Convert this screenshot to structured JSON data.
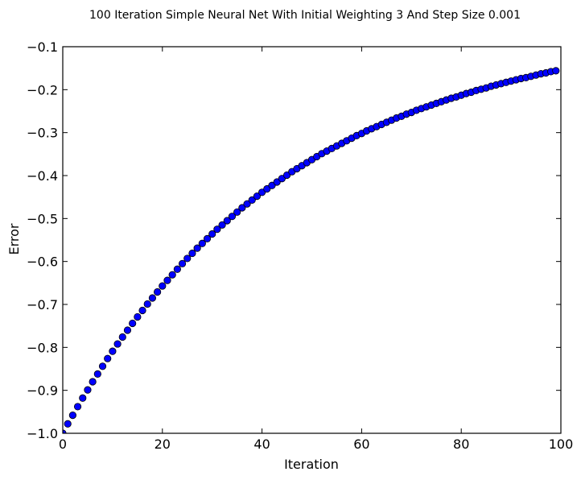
{
  "chart_data": {
    "type": "scatter",
    "title": "100 Iteration Simple Neural Net With Initial Weighting 3 And Step Size 0.001",
    "xlabel": "Iteration",
    "ylabel": "Error",
    "xlim": [
      0,
      100
    ],
    "ylim": [
      -1.0,
      -0.1
    ],
    "grid": false,
    "x_ticks": [
      0,
      20,
      40,
      60,
      80,
      100
    ],
    "x_tick_labels": [
      "0",
      "20",
      "40",
      "60",
      "80",
      "100"
    ],
    "y_ticks": [
      -1.0,
      -0.9,
      -0.8,
      -0.7,
      -0.6,
      -0.5,
      -0.4,
      -0.3,
      -0.2,
      -0.1
    ],
    "y_tick_labels": [
      "−1.0",
      "−0.9",
      "−0.8",
      "−0.7",
      "−0.6",
      "−0.5",
      "−0.4",
      "−0.3",
      "−0.2",
      "−0.1"
    ],
    "colors": {
      "marker_fill": "#0000ff",
      "marker_edge": "#000000",
      "axes": "#000000",
      "text": "#000000"
    },
    "series": [
      {
        "x": [
          0,
          1,
          2,
          3,
          4,
          5,
          6,
          7,
          8,
          9,
          10,
          11,
          12,
          13,
          14,
          15,
          16,
          17,
          18,
          19,
          20,
          21,
          22,
          23,
          24,
          25,
          26,
          27,
          28,
          29,
          30,
          31,
          32,
          33,
          34,
          35,
          36,
          37,
          38,
          39,
          40,
          41,
          42,
          43,
          44,
          45,
          46,
          47,
          48,
          49,
          50,
          51,
          52,
          53,
          54,
          55,
          56,
          57,
          58,
          59,
          60,
          61,
          62,
          63,
          64,
          65,
          66,
          67,
          68,
          69,
          70,
          71,
          72,
          73,
          74,
          75,
          76,
          77,
          78,
          79,
          80,
          81,
          82,
          83,
          84,
          85,
          86,
          87,
          88,
          89,
          90,
          91,
          92,
          93,
          94,
          95,
          96,
          97,
          98,
          99
        ],
        "values": [
          -1.0,
          -0.978,
          -0.958,
          -0.938,
          -0.918,
          -0.899,
          -0.88,
          -0.862,
          -0.844,
          -0.826,
          -0.809,
          -0.792,
          -0.776,
          -0.76,
          -0.744,
          -0.729,
          -0.714,
          -0.699,
          -0.685,
          -0.671,
          -0.657,
          -0.644,
          -0.631,
          -0.618,
          -0.605,
          -0.593,
          -0.581,
          -0.569,
          -0.558,
          -0.547,
          -0.536,
          -0.525,
          -0.515,
          -0.505,
          -0.495,
          -0.485,
          -0.475,
          -0.466,
          -0.457,
          -0.448,
          -0.439,
          -0.431,
          -0.423,
          -0.415,
          -0.407,
          -0.399,
          -0.391,
          -0.384,
          -0.377,
          -0.37,
          -0.363,
          -0.356,
          -0.349,
          -0.343,
          -0.337,
          -0.331,
          -0.325,
          -0.319,
          -0.313,
          -0.307,
          -0.302,
          -0.296,
          -0.291,
          -0.286,
          -0.281,
          -0.276,
          -0.271,
          -0.266,
          -0.262,
          -0.257,
          -0.253,
          -0.248,
          -0.244,
          -0.24,
          -0.236,
          -0.232,
          -0.228,
          -0.224,
          -0.22,
          -0.217,
          -0.213,
          -0.209,
          -0.206,
          -0.202,
          -0.199,
          -0.196,
          -0.192,
          -0.189,
          -0.186,
          -0.183,
          -0.18,
          -0.177,
          -0.174,
          -0.172,
          -0.169,
          -0.166,
          -0.163,
          -0.161,
          -0.158,
          -0.156
        ]
      }
    ]
  }
}
